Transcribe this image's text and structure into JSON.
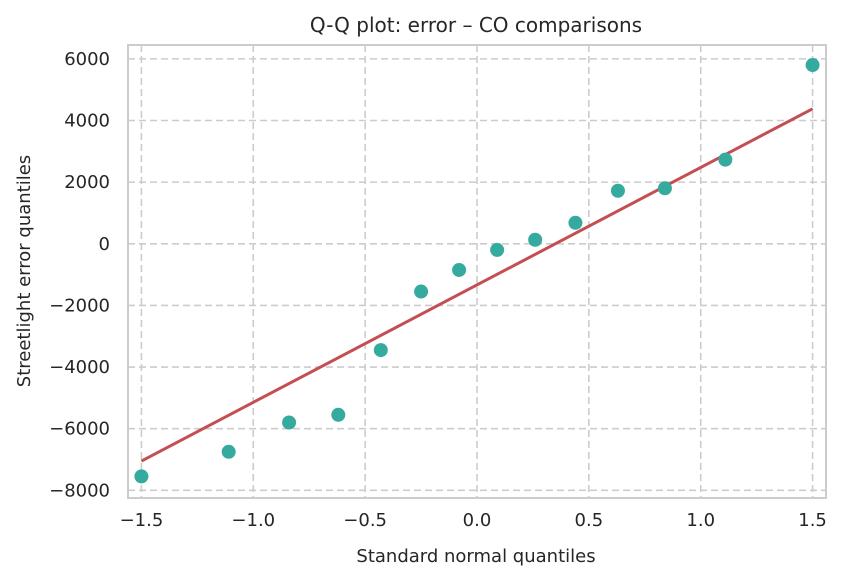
{
  "chart_data": {
    "type": "scatter",
    "title": "Q-Q plot: error – CO comparisons",
    "xlabel": "Standard normal quantiles",
    "ylabel": "Streetlight error quantiles",
    "xlim": [
      -1.56,
      1.56
    ],
    "ylim": [
      -8250,
      6450
    ],
    "x_ticks": [
      -1.5,
      -1.0,
      -0.5,
      0.0,
      0.5,
      1.0,
      1.5
    ],
    "x_tick_labels": [
      "−1.5",
      "−1.0",
      "−0.5",
      "0.0",
      "0.5",
      "1.0",
      "1.5"
    ],
    "y_ticks": [
      -8000,
      -6000,
      -4000,
      -2000,
      0,
      2000,
      4000,
      6000
    ],
    "y_tick_labels": [
      "−8000",
      "−6000",
      "−4000",
      "−2000",
      "0",
      "2000",
      "4000",
      "6000"
    ],
    "grid": true,
    "legend": "none",
    "colors": {
      "points": "#35ab9f",
      "line": "#c44e52",
      "grid": "#cccccc",
      "spine": "#cccccc",
      "text": "#262626"
    },
    "points": [
      {
        "x": -1.5,
        "y": -7550
      },
      {
        "x": -1.11,
        "y": -6750
      },
      {
        "x": -0.84,
        "y": -5800
      },
      {
        "x": -0.62,
        "y": -5550
      },
      {
        "x": -0.43,
        "y": -3450
      },
      {
        "x": -0.25,
        "y": -1550
      },
      {
        "x": -0.08,
        "y": -850
      },
      {
        "x": 0.09,
        "y": -200
      },
      {
        "x": 0.26,
        "y": 130
      },
      {
        "x": 0.44,
        "y": 680
      },
      {
        "x": 0.63,
        "y": 1720
      },
      {
        "x": 0.84,
        "y": 1800
      },
      {
        "x": 1.11,
        "y": 2730
      },
      {
        "x": 1.5,
        "y": 5800
      }
    ],
    "reference_line": {
      "x": [
        -1.5,
        1.5
      ],
      "y": [
        -7050,
        4380
      ]
    }
  }
}
